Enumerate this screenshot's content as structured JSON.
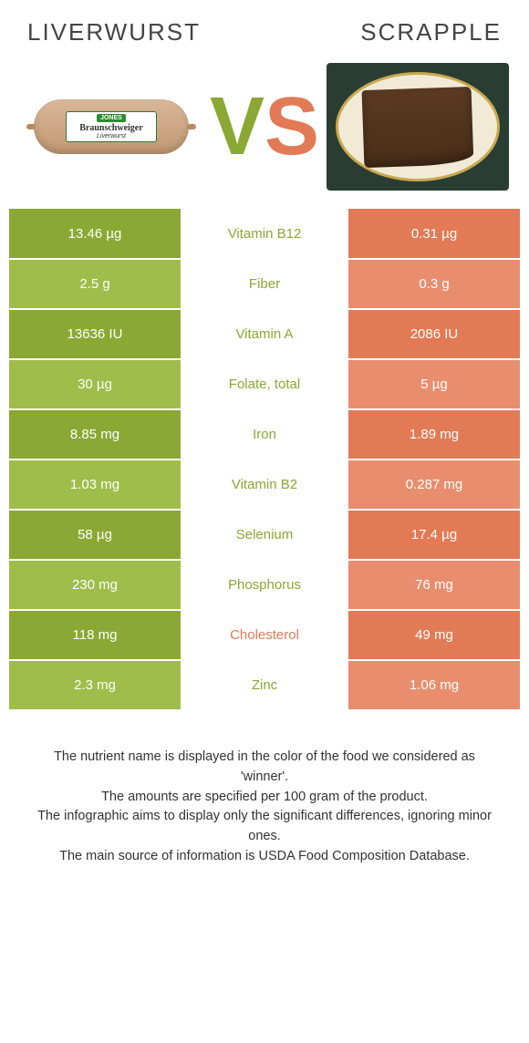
{
  "colors": {
    "green_dark": "#8aa833",
    "green_light": "#9fbd4a",
    "orange_dark": "#e27a56",
    "orange_light": "#e88e6e",
    "text": "#333333",
    "white": "#ffffff"
  },
  "header": {
    "left_title": "LIVERWURST",
    "right_title": "SCRAPPLE",
    "vs_v": "V",
    "vs_s": "S",
    "liver_label_brand": "JONES",
    "liver_label_main": "Braunschweiger",
    "liver_label_sub": "Liverwurst"
  },
  "rows": [
    {
      "left": "13.46 µg",
      "nutrient": "Vitamin B12",
      "right": "0.31 µg",
      "winner": "green"
    },
    {
      "left": "2.5 g",
      "nutrient": "Fiber",
      "right": "0.3 g",
      "winner": "green"
    },
    {
      "left": "13636 IU",
      "nutrient": "Vitamin A",
      "right": "2086 IU",
      "winner": "green"
    },
    {
      "left": "30 µg",
      "nutrient": "Folate, total",
      "right": "5 µg",
      "winner": "green"
    },
    {
      "left": "8.85 mg",
      "nutrient": "Iron",
      "right": "1.89 mg",
      "winner": "green"
    },
    {
      "left": "1.03 mg",
      "nutrient": "Vitamin B2",
      "right": "0.287 mg",
      "winner": "green"
    },
    {
      "left": "58 µg",
      "nutrient": "Selenium",
      "right": "17.4 µg",
      "winner": "green"
    },
    {
      "left": "230 mg",
      "nutrient": "Phosphorus",
      "right": "76 mg",
      "winner": "green"
    },
    {
      "left": "118 mg",
      "nutrient": "Cholesterol",
      "right": "49 mg",
      "winner": "orange"
    },
    {
      "left": "2.3 mg",
      "nutrient": "Zinc",
      "right": "1.06 mg",
      "winner": "green"
    }
  ],
  "footer": {
    "line1": "The nutrient name is displayed in the color of the food we considered as 'winner'.",
    "line2": "The amounts are specified per 100 gram of the product.",
    "line3": "The infographic aims to display only the significant differences, ignoring minor ones.",
    "line4": "The main source of information is USDA Food Composition Database."
  }
}
